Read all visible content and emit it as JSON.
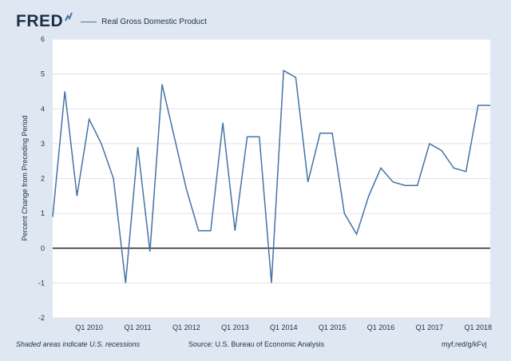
{
  "header": {
    "logo_text": "FRED",
    "legend_label": "Real Gross Domestic Product",
    "series_color": "#4572a7"
  },
  "footer": {
    "recession_note": "Shaded areas indicate U.S. recessions",
    "source": "Source: U.S. Bureau of Economic Analysis",
    "short_url": "myf.red/g/kFvj"
  },
  "chart_data": {
    "type": "line",
    "title": "",
    "xlabel": "",
    "ylabel": "Percent Change from Preceding Period",
    "ylim": [
      -2,
      6
    ],
    "yticks": [
      -2,
      -1,
      0,
      1,
      2,
      3,
      4,
      5,
      6
    ],
    "grid": true,
    "zero_line": true,
    "x_tick_labels": [
      "Q1 2010",
      "Q1 2011",
      "Q1 2012",
      "Q1 2013",
      "Q1 2014",
      "Q1 2015",
      "Q1 2016",
      "Q1 2017",
      "Q1 2018"
    ],
    "x": [
      "2009-Q2",
      "2009-Q3",
      "2009-Q4",
      "2010-Q1",
      "2010-Q2",
      "2010-Q3",
      "2010-Q4",
      "2011-Q1",
      "2011-Q2",
      "2011-Q3",
      "2011-Q4",
      "2012-Q1",
      "2012-Q2",
      "2012-Q3",
      "2012-Q4",
      "2013-Q1",
      "2013-Q2",
      "2013-Q3",
      "2013-Q4",
      "2014-Q1",
      "2014-Q2",
      "2014-Q3",
      "2014-Q4",
      "2015-Q1",
      "2015-Q2",
      "2015-Q3",
      "2015-Q4",
      "2016-Q1",
      "2016-Q2",
      "2016-Q3",
      "2016-Q4",
      "2017-Q1",
      "2017-Q2",
      "2017-Q3",
      "2017-Q4",
      "2018-Q1",
      "2018-Q2"
    ],
    "series": [
      {
        "name": "Real Gross Domestic Product",
        "values": [
          0.9,
          4.5,
          1.5,
          3.7,
          3.0,
          2.0,
          -1.0,
          2.9,
          -0.1,
          4.7,
          3.2,
          1.7,
          0.5,
          0.5,
          3.6,
          0.5,
          3.2,
          3.2,
          -1.0,
          5.1,
          4.9,
          1.9,
          3.3,
          3.3,
          1.0,
          0.4,
          1.5,
          2.3,
          1.9,
          1.8,
          1.8,
          3.0,
          2.8,
          2.3,
          2.2,
          4.1,
          4.1
        ]
      }
    ]
  }
}
